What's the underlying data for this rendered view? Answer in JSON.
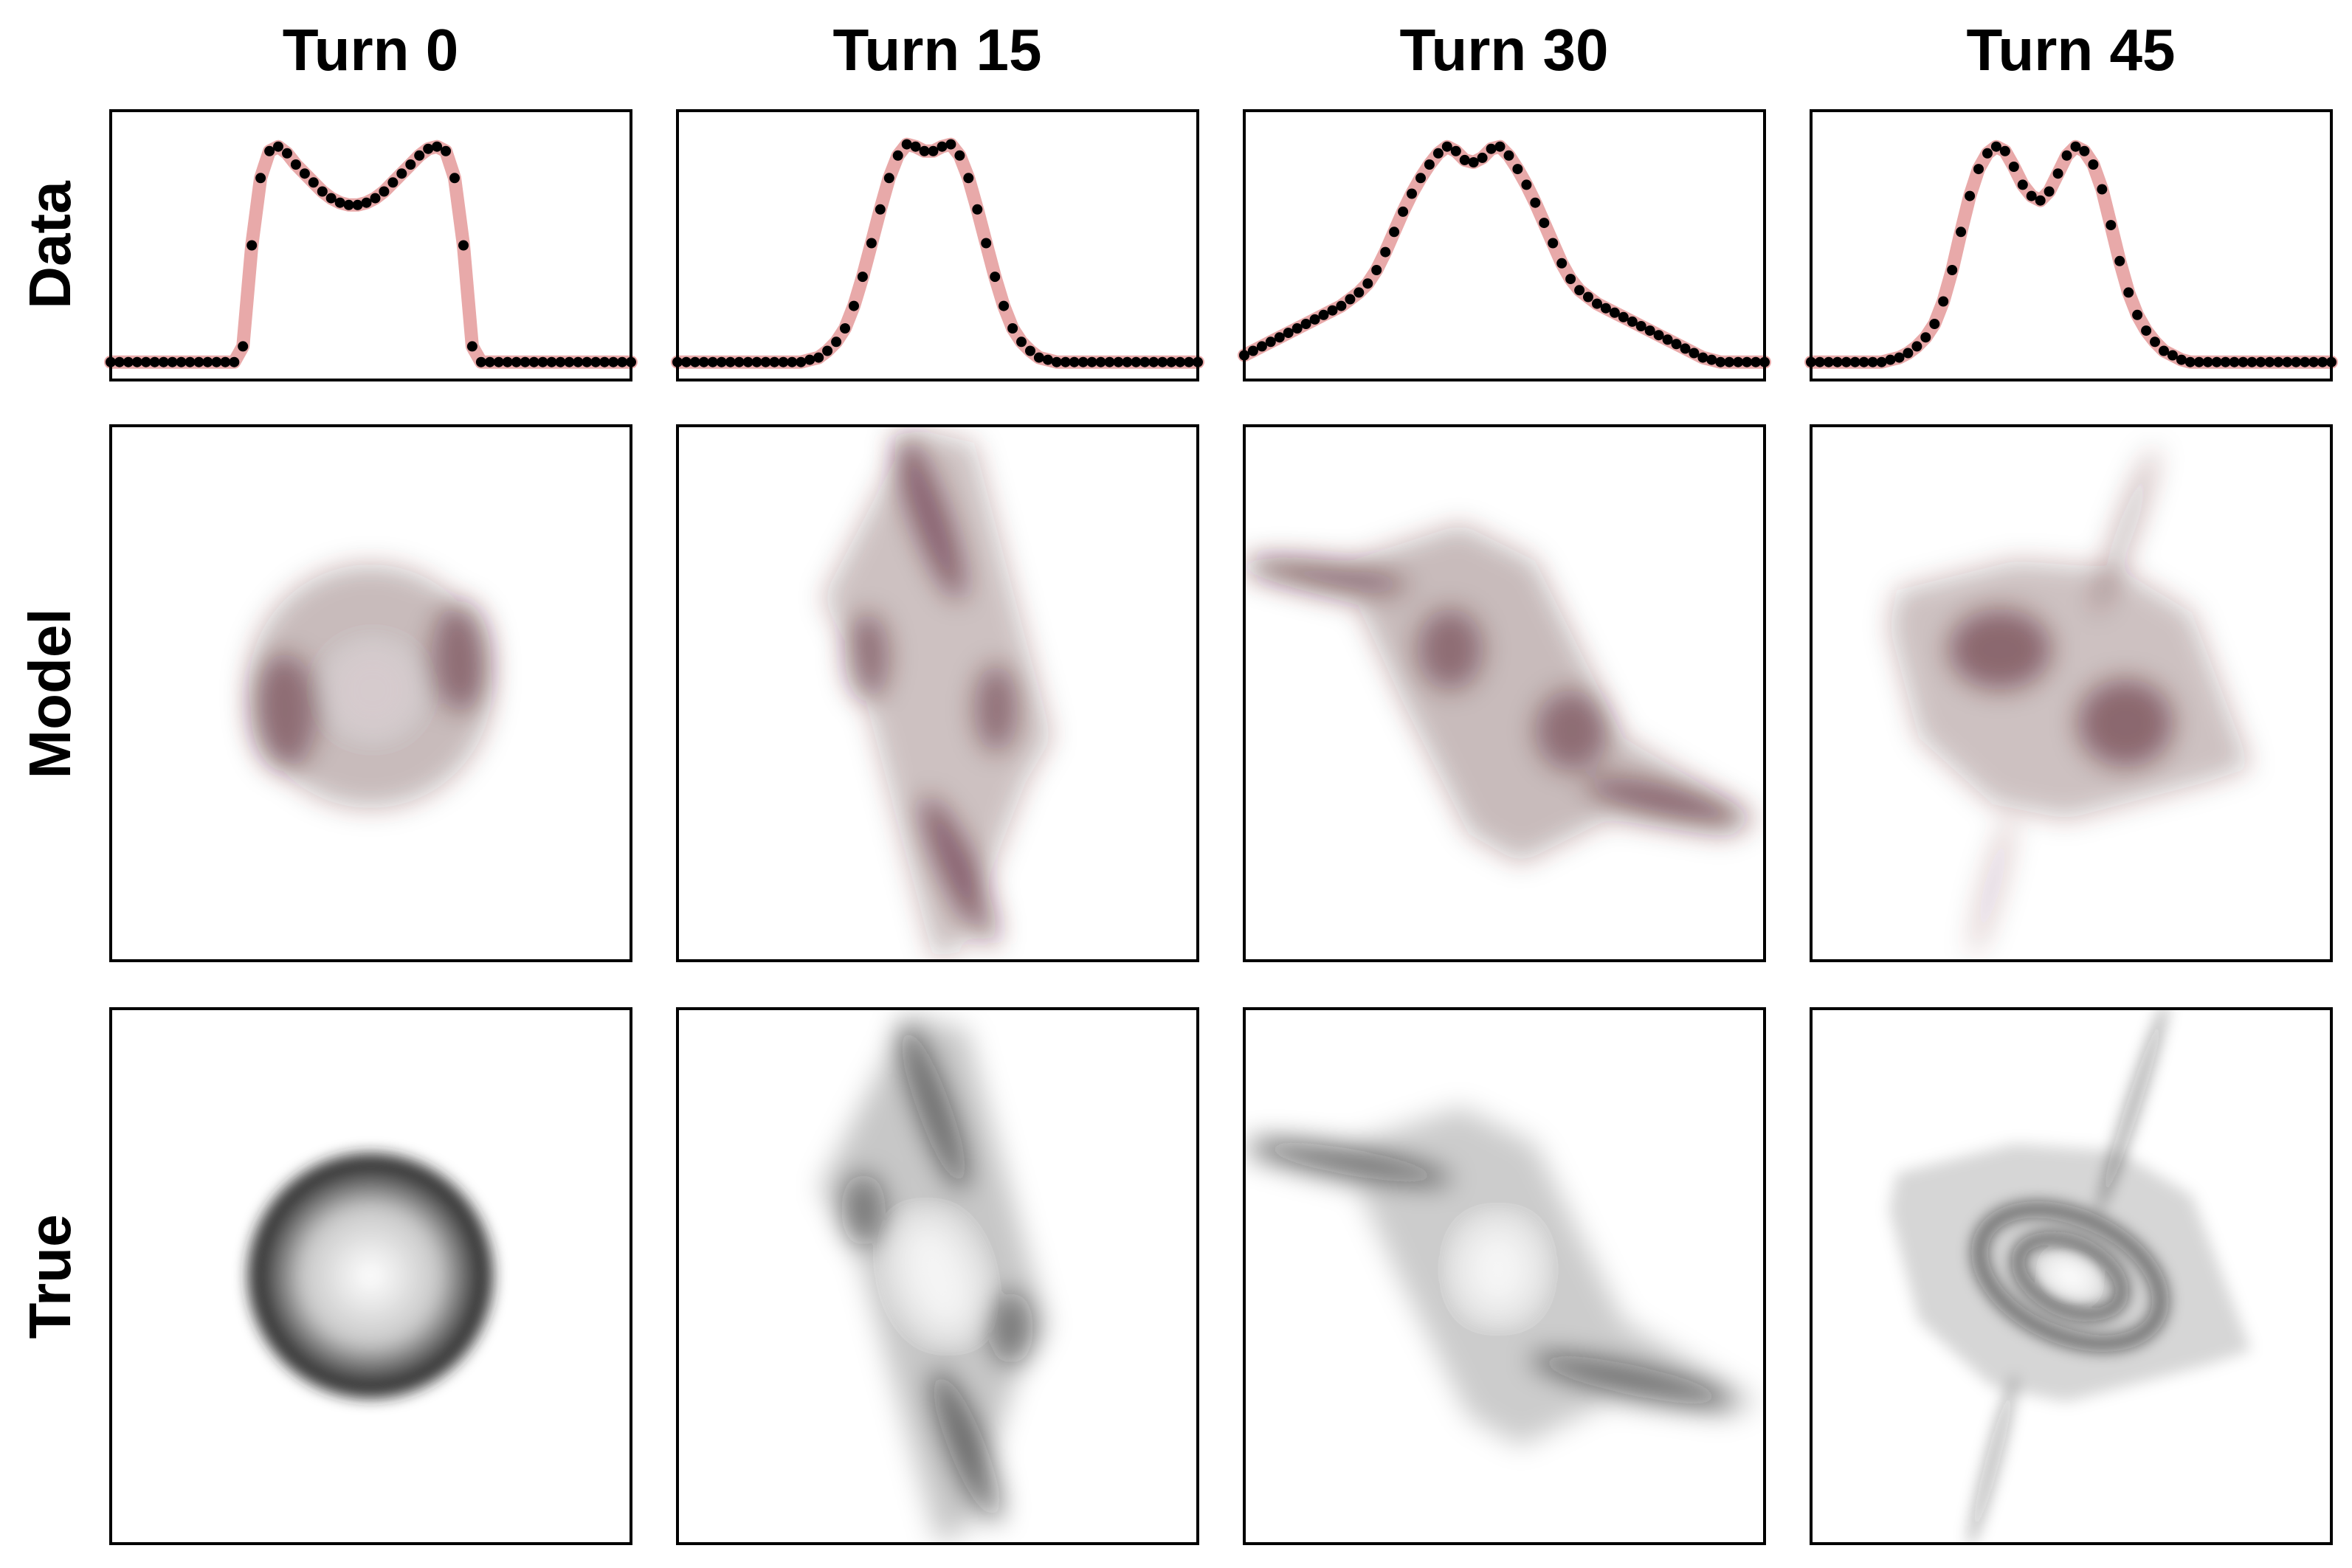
{
  "figure": {
    "column_titles": [
      "Turn 0",
      "Turn 15",
      "Turn 30",
      "Turn 45"
    ],
    "row_labels": [
      "Data",
      "Model",
      "True"
    ]
  },
  "colors": {
    "model_fit": "#e8a9a9",
    "data_points": "#000000",
    "model_density": "#4a1620",
    "true_density": "#141414"
  },
  "chart_data": [
    {
      "type": "line",
      "row": "Data",
      "column": "Turn 0",
      "x": [
        0,
        1,
        2,
        3,
        4,
        5,
        6,
        7,
        8,
        9,
        10,
        11,
        12,
        13,
        14,
        15,
        16,
        17,
        18,
        19,
        20,
        21,
        22,
        23,
        24,
        25,
        26,
        27,
        28,
        29,
        30,
        31,
        32,
        33,
        34,
        35,
        36,
        37,
        38,
        39,
        40,
        41,
        42,
        43,
        44,
        45,
        46,
        47,
        48,
        49,
        50,
        51,
        52,
        53,
        54,
        55,
        56,
        57,
        58,
        59
      ],
      "series": [
        {
          "values": [
            0.0,
            0.0,
            0.0,
            0.0,
            0.0,
            0.0,
            0.0,
            0.0,
            0.0,
            0.0,
            0.0,
            0.0,
            0.0,
            0.0,
            0.0,
            0.07,
            0.52,
            0.82,
            0.94,
            0.96,
            0.93,
            0.88,
            0.84,
            0.8,
            0.76,
            0.73,
            0.71,
            0.7,
            0.7,
            0.71,
            0.73,
            0.76,
            0.8,
            0.84,
            0.88,
            0.92,
            0.95,
            0.96,
            0.94,
            0.82,
            0.52,
            0.07,
            0.0,
            0.0,
            0.0,
            0.0,
            0.0,
            0.0,
            0.0,
            0.0,
            0.0,
            0.0,
            0.0,
            0.0,
            0.0,
            0.0,
            0.0,
            0.0,
            0.0,
            0.0
          ]
        }
      ],
      "ylim": [
        -0.08,
        1.12
      ]
    },
    {
      "type": "line",
      "row": "Data",
      "column": "Turn 15",
      "x": [
        0,
        1,
        2,
        3,
        4,
        5,
        6,
        7,
        8,
        9,
        10,
        11,
        12,
        13,
        14,
        15,
        16,
        17,
        18,
        19,
        20,
        21,
        22,
        23,
        24,
        25,
        26,
        27,
        28,
        29,
        30,
        31,
        32,
        33,
        34,
        35,
        36,
        37,
        38,
        39,
        40,
        41,
        42,
        43,
        44,
        45,
        46,
        47,
        48,
        49,
        50,
        51,
        52,
        53,
        54,
        55,
        56,
        57,
        58,
        59
      ],
      "series": [
        {
          "values": [
            0.0,
            0.0,
            0.0,
            0.0,
            0.0,
            0.0,
            0.0,
            0.0,
            0.0,
            0.0,
            0.0,
            0.0,
            0.0,
            0.0,
            0.0,
            0.01,
            0.02,
            0.05,
            0.09,
            0.15,
            0.25,
            0.38,
            0.53,
            0.68,
            0.82,
            0.92,
            0.97,
            0.96,
            0.94,
            0.94,
            0.96,
            0.97,
            0.92,
            0.82,
            0.68,
            0.53,
            0.38,
            0.25,
            0.15,
            0.09,
            0.05,
            0.02,
            0.01,
            0.0,
            0.0,
            0.0,
            0.0,
            0.0,
            0.0,
            0.0,
            0.0,
            0.0,
            0.0,
            0.0,
            0.0,
            0.0,
            0.0,
            0.0,
            0.0,
            0.0
          ]
        }
      ],
      "ylim": [
        -0.08,
        1.12
      ]
    },
    {
      "type": "line",
      "row": "Data",
      "column": "Turn 30",
      "x": [
        0,
        1,
        2,
        3,
        4,
        5,
        6,
        7,
        8,
        9,
        10,
        11,
        12,
        13,
        14,
        15,
        16,
        17,
        18,
        19,
        20,
        21,
        22,
        23,
        24,
        25,
        26,
        27,
        28,
        29,
        30,
        31,
        32,
        33,
        34,
        35,
        36,
        37,
        38,
        39,
        40,
        41,
        42,
        43,
        44,
        45,
        46,
        47,
        48,
        49,
        50,
        51,
        52,
        53,
        54,
        55,
        56,
        57,
        58,
        59
      ],
      "series": [
        {
          "values": [
            0.03,
            0.05,
            0.07,
            0.09,
            0.11,
            0.13,
            0.15,
            0.17,
            0.19,
            0.21,
            0.23,
            0.25,
            0.28,
            0.31,
            0.35,
            0.41,
            0.49,
            0.58,
            0.67,
            0.75,
            0.82,
            0.88,
            0.93,
            0.96,
            0.94,
            0.9,
            0.89,
            0.91,
            0.95,
            0.96,
            0.92,
            0.86,
            0.79,
            0.71,
            0.62,
            0.53,
            0.44,
            0.37,
            0.32,
            0.29,
            0.26,
            0.24,
            0.22,
            0.2,
            0.18,
            0.16,
            0.14,
            0.12,
            0.1,
            0.08,
            0.06,
            0.04,
            0.02,
            0.01,
            0.0,
            0.0,
            0.0,
            0.0,
            0.0,
            0.0
          ]
        }
      ],
      "ylim": [
        -0.08,
        1.12
      ]
    },
    {
      "type": "line",
      "row": "Data",
      "column": "Turn 45",
      "x": [
        0,
        1,
        2,
        3,
        4,
        5,
        6,
        7,
        8,
        9,
        10,
        11,
        12,
        13,
        14,
        15,
        16,
        17,
        18,
        19,
        20,
        21,
        22,
        23,
        24,
        25,
        26,
        27,
        28,
        29,
        30,
        31,
        32,
        33,
        34,
        35,
        36,
        37,
        38,
        39,
        40,
        41,
        42,
        43,
        44,
        45,
        46,
        47,
        48,
        49,
        50,
        51,
        52,
        53,
        54,
        55,
        56,
        57,
        58,
        59
      ],
      "series": [
        {
          "values": [
            0.0,
            0.0,
            0.0,
            0.0,
            0.0,
            0.0,
            0.0,
            0.0,
            0.0,
            0.01,
            0.02,
            0.04,
            0.07,
            0.11,
            0.17,
            0.27,
            0.41,
            0.58,
            0.74,
            0.86,
            0.93,
            0.96,
            0.94,
            0.87,
            0.79,
            0.74,
            0.72,
            0.76,
            0.84,
            0.92,
            0.96,
            0.94,
            0.88,
            0.77,
            0.61,
            0.45,
            0.31,
            0.21,
            0.14,
            0.09,
            0.05,
            0.03,
            0.01,
            0.0,
            0.0,
            0.0,
            0.0,
            0.0,
            0.0,
            0.0,
            0.0,
            0.0,
            0.0,
            0.0,
            0.0,
            0.0,
            0.0,
            0.0,
            0.0,
            0.0
          ]
        }
      ],
      "ylim": [
        -0.08,
        1.12
      ]
    },
    {
      "type": "heatmap",
      "row": "Model",
      "column": "Turn 0",
      "shape": "disc",
      "color": "#4a1620"
    },
    {
      "type": "heatmap",
      "row": "Model",
      "column": "Turn 15",
      "shape": "tilted-parallelogram",
      "color": "#4a1620"
    },
    {
      "type": "heatmap",
      "row": "Model",
      "column": "Turn 30",
      "shape": "sheared-band",
      "color": "#4a1620"
    },
    {
      "type": "heatmap",
      "row": "Model",
      "column": "Turn 45",
      "shape": "spiral",
      "color": "#4a1620"
    },
    {
      "type": "heatmap",
      "row": "True",
      "column": "Turn 0",
      "shape": "ring",
      "color": "#141414"
    },
    {
      "type": "heatmap",
      "row": "True",
      "column": "Turn 15",
      "shape": "tilted-parallelogram",
      "color": "#141414"
    },
    {
      "type": "heatmap",
      "row": "True",
      "column": "Turn 30",
      "shape": "sheared-band",
      "color": "#141414"
    },
    {
      "type": "heatmap",
      "row": "True",
      "column": "Turn 45",
      "shape": "spiral",
      "color": "#141414"
    }
  ]
}
